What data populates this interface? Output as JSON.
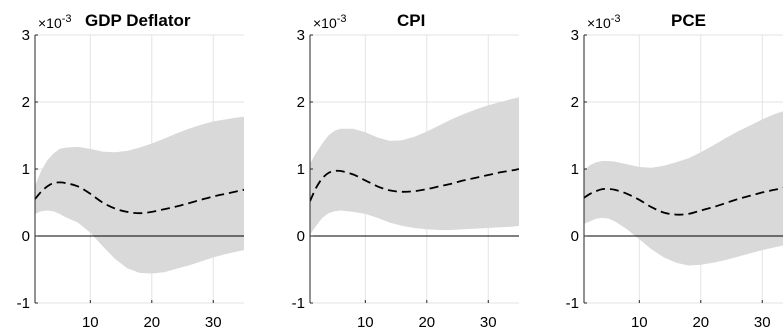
{
  "chart_data": [
    {
      "type": "area",
      "title": "GDP Deflator",
      "y_multiplier": "×10",
      "y_exponent": "-3",
      "xlim": [
        1,
        35
      ],
      "ylim": [
        -1,
        3
      ],
      "xticks": [
        10,
        20,
        30
      ],
      "yticks": [
        -1,
        0,
        1,
        2,
        3
      ],
      "grid": true,
      "zero_line": true,
      "series": [
        {
          "style": "dashed-median",
          "x": [
            1,
            2,
            3,
            4,
            5,
            6,
            8,
            10,
            12,
            14,
            16,
            18,
            20,
            22,
            24,
            26,
            28,
            30,
            32,
            34,
            35
          ],
          "values": [
            0.55,
            0.66,
            0.74,
            0.79,
            0.8,
            0.79,
            0.74,
            0.63,
            0.5,
            0.41,
            0.36,
            0.34,
            0.36,
            0.4,
            0.44,
            0.49,
            0.54,
            0.59,
            0.63,
            0.67,
            0.69
          ]
        },
        {
          "style": "band",
          "x": [
            1,
            2,
            3,
            4,
            5,
            6,
            8,
            10,
            12,
            14,
            16,
            18,
            20,
            22,
            24,
            26,
            28,
            30,
            32,
            34,
            35
          ],
          "lower": [
            0.33,
            0.37,
            0.38,
            0.37,
            0.33,
            0.28,
            0.2,
            0.05,
            -0.15,
            -0.34,
            -0.48,
            -0.55,
            -0.56,
            -0.54,
            -0.49,
            -0.44,
            -0.38,
            -0.32,
            -0.27,
            -0.23,
            -0.21
          ],
          "upper": [
            0.75,
            0.97,
            1.13,
            1.23,
            1.3,
            1.32,
            1.33,
            1.3,
            1.26,
            1.25,
            1.27,
            1.32,
            1.38,
            1.45,
            1.53,
            1.6,
            1.66,
            1.71,
            1.74,
            1.77,
            1.78
          ]
        }
      ]
    },
    {
      "type": "area",
      "title": "CPI",
      "y_multiplier": "×10",
      "y_exponent": "-3",
      "xlim": [
        1,
        35
      ],
      "ylim": [
        -1,
        3
      ],
      "xticks": [
        10,
        20,
        30
      ],
      "yticks": [
        -1,
        0,
        1,
        2,
        3
      ],
      "grid": true,
      "zero_line": true,
      "series": [
        {
          "style": "dashed-median",
          "x": [
            1,
            2,
            3,
            4,
            5,
            6,
            8,
            10,
            12,
            14,
            16,
            18,
            20,
            22,
            24,
            26,
            28,
            30,
            32,
            34,
            35
          ],
          "values": [
            0.52,
            0.72,
            0.86,
            0.94,
            0.97,
            0.97,
            0.92,
            0.83,
            0.74,
            0.68,
            0.66,
            0.67,
            0.7,
            0.74,
            0.78,
            0.83,
            0.87,
            0.91,
            0.95,
            0.98,
            1.0
          ]
        },
        {
          "style": "band",
          "x": [
            1,
            2,
            3,
            4,
            5,
            6,
            8,
            10,
            12,
            14,
            16,
            18,
            20,
            22,
            24,
            26,
            28,
            30,
            32,
            34,
            35
          ],
          "lower": [
            0.02,
            0.15,
            0.27,
            0.34,
            0.37,
            0.38,
            0.36,
            0.33,
            0.27,
            0.2,
            0.15,
            0.12,
            0.1,
            0.09,
            0.09,
            0.1,
            0.11,
            0.12,
            0.13,
            0.14,
            0.15
          ],
          "upper": [
            1.08,
            1.24,
            1.38,
            1.5,
            1.57,
            1.6,
            1.6,
            1.55,
            1.47,
            1.42,
            1.43,
            1.48,
            1.56,
            1.65,
            1.74,
            1.82,
            1.89,
            1.95,
            2.0,
            2.05,
            2.07
          ]
        }
      ]
    },
    {
      "type": "area",
      "title": "PCE",
      "y_multiplier": "×10",
      "y_exponent": "-3",
      "xlim": [
        1,
        35
      ],
      "ylim": [
        -1,
        3
      ],
      "xticks": [
        10,
        20,
        30
      ],
      "yticks": [
        -1,
        0,
        1,
        2,
        3
      ],
      "grid": true,
      "zero_line": true,
      "series": [
        {
          "style": "dashed-median",
          "x": [
            1,
            2,
            3,
            4,
            5,
            6,
            8,
            10,
            12,
            14,
            16,
            18,
            20,
            22,
            24,
            26,
            28,
            30,
            32,
            34,
            35
          ],
          "values": [
            0.57,
            0.63,
            0.67,
            0.7,
            0.7,
            0.69,
            0.63,
            0.54,
            0.43,
            0.35,
            0.32,
            0.33,
            0.38,
            0.43,
            0.49,
            0.55,
            0.6,
            0.65,
            0.69,
            0.73,
            0.75
          ]
        },
        {
          "style": "band",
          "x": [
            1,
            2,
            3,
            4,
            5,
            6,
            8,
            10,
            12,
            14,
            16,
            18,
            20,
            22,
            24,
            26,
            28,
            30,
            32,
            34,
            35
          ],
          "lower": [
            0.18,
            0.22,
            0.26,
            0.27,
            0.26,
            0.22,
            0.1,
            -0.05,
            -0.2,
            -0.32,
            -0.4,
            -0.44,
            -0.43,
            -0.4,
            -0.36,
            -0.31,
            -0.26,
            -0.21,
            -0.17,
            -0.13,
            -0.11
          ],
          "upper": [
            0.98,
            1.06,
            1.1,
            1.12,
            1.12,
            1.11,
            1.07,
            1.03,
            1.02,
            1.05,
            1.1,
            1.16,
            1.25,
            1.35,
            1.46,
            1.56,
            1.65,
            1.74,
            1.82,
            1.88,
            1.91
          ]
        }
      ]
    }
  ]
}
